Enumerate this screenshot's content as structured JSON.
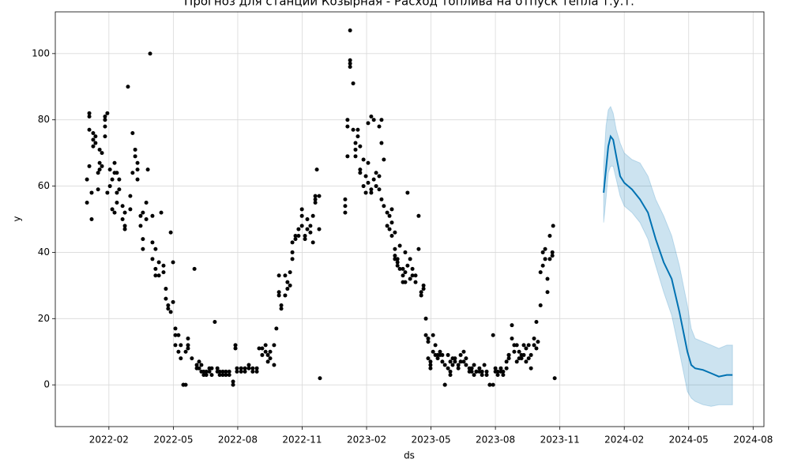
{
  "chart_data": {
    "type": "forecast",
    "title": "Прогноз для станции Козырная - Расход топлива на отпуск тепла т.у.т.",
    "xlabel": "ds",
    "ylabel": "y",
    "grid": true,
    "xlim": [
      2021.875,
      2024.625
    ],
    "ylim": [
      -12.6,
      112.6
    ],
    "yticks": [
      0,
      20,
      40,
      60,
      80,
      100
    ],
    "xticks": [
      {
        "value": 2022.083,
        "label": "2022-02"
      },
      {
        "value": 2022.333,
        "label": "2022-05"
      },
      {
        "value": 2022.583,
        "label": "2022-08"
      },
      {
        "value": 2022.833,
        "label": "2022-11"
      },
      {
        "value": 2023.083,
        "label": "2023-02"
      },
      {
        "value": 2023.333,
        "label": "2023-05"
      },
      {
        "value": 2023.583,
        "label": "2023-08"
      },
      {
        "value": 2023.833,
        "label": "2023-11"
      },
      {
        "value": 2024.083,
        "label": "2024-02"
      },
      {
        "value": 2024.333,
        "label": "2024-05"
      },
      {
        "value": 2024.583,
        "label": "2024-08"
      }
    ],
    "series": [
      {
        "type": "scatter",
        "color": "#000000",
        "x": [
          2021.998,
          2021.998,
          2022.007,
          2022.007,
          2022.007,
          2022.007,
          2022.016,
          2022.016,
          2022.022,
          2022.022,
          2022.022,
          2022.031,
          2022.031,
          2022.041,
          2022.041,
          2022.047,
          2022.047,
          2022.047,
          2022.056,
          2022.056,
          2022.068,
          2022.068,
          2022.068,
          2022.068,
          2022.077,
          2022.077,
          2022.087,
          2022.087,
          2022.096,
          2022.096,
          2022.105,
          2022.105,
          2022.105,
          2022.114,
          2022.114,
          2022.114,
          2022.123,
          2022.123,
          2022.136,
          2022.136,
          2022.145,
          2022.145,
          2022.145,
          2022.157,
          2022.166,
          2022.166,
          2022.175,
          2022.175,
          2022.185,
          2022.185,
          2022.194,
          2022.194,
          2022.194,
          2022.206,
          2022.206,
          2022.215,
          2022.215,
          2022.215,
          2022.228,
          2022.228,
          2022.234,
          2022.243,
          2022.252,
          2022.252,
          2022.252,
          2022.264,
          2022.264,
          2022.264,
          2022.277,
          2022.277,
          2022.286,
          2022.295,
          2022.295,
          2022.304,
          2022.304,
          2022.313,
          2022.313,
          2022.323,
          2022.323,
          2022.332,
          2022.332,
          2022.341,
          2022.341,
          2022.341,
          2022.353,
          2022.353,
          2022.362,
          2022.362,
          2022.372,
          2022.372,
          2022.381,
          2022.381,
          2022.39,
          2022.39,
          2022.39,
          2022.405,
          2022.415,
          2022.424,
          2022.424,
          2022.433,
          2022.433,
          2022.442,
          2022.442,
          2022.451,
          2022.451,
          2022.461,
          2022.461,
          2022.473,
          2022.473,
          2022.482,
          2022.482,
          2022.494,
          2022.504,
          2022.504,
          2022.513,
          2022.513,
          2022.525,
          2022.525,
          2022.537,
          2022.537,
          2022.55,
          2022.55,
          2022.565,
          2022.565,
          2022.574,
          2022.574,
          2022.58,
          2022.58,
          2022.596,
          2022.596,
          2022.611,
          2022.611,
          2022.626,
          2022.626,
          2022.641,
          2022.641,
          2022.657,
          2022.657,
          2022.666,
          2022.678,
          2022.678,
          2022.691,
          2022.691,
          2022.7,
          2022.7,
          2022.709,
          2022.709,
          2022.724,
          2022.724,
          2022.733,
          2022.743,
          2022.743,
          2022.743,
          2022.752,
          2022.752,
          2022.767,
          2022.767,
          2022.776,
          2022.776,
          2022.786,
          2022.786,
          2022.795,
          2022.795,
          2022.795,
          2022.807,
          2022.807,
          2022.819,
          2022.819,
          2022.832,
          2022.832,
          2022.832,
          2022.844,
          2022.844,
          2022.853,
          2022.853,
          2022.865,
          2022.865,
          2022.875,
          2022.875,
          2022.884,
          2022.884,
          2022.884,
          2022.89,
          2022.899,
          2022.899,
          2022.902,
          2023.0,
          2023.0,
          2023.0,
          2023.009,
          2023.009,
          2023.009,
          2023.019,
          2023.019,
          2023.019,
          2023.019,
          2023.031,
          2023.031,
          2023.04,
          2023.04,
          2023.04,
          2023.049,
          2023.049,
          2023.058,
          2023.058,
          2023.058,
          2023.071,
          2023.071,
          2023.08,
          2023.08,
          2023.089,
          2023.089,
          2023.089,
          2023.101,
          2023.101,
          2023.101,
          2023.111,
          2023.111,
          2023.12,
          2023.12,
          2023.132,
          2023.132,
          2023.132,
          2023.141,
          2023.141,
          2023.141,
          2023.15,
          2023.15,
          2023.163,
          2023.163,
          2023.172,
          2023.172,
          2023.181,
          2023.181,
          2023.181,
          2023.193,
          2023.193,
          2023.193,
          2023.193,
          2023.203,
          2023.203,
          2023.203,
          2023.212,
          2023.212,
          2023.224,
          2023.224,
          2023.224,
          2023.233,
          2023.233,
          2023.233,
          2023.242,
          2023.242,
          2023.252,
          2023.252,
          2023.261,
          2023.261,
          2023.273,
          2023.273,
          2023.285,
          2023.285,
          2023.295,
          2023.295,
          2023.304,
          2023.304,
          2023.313,
          2023.313,
          2023.322,
          2023.322,
          2023.322,
          2023.331,
          2023.331,
          2023.331,
          2023.341,
          2023.341,
          2023.35,
          2023.35,
          2023.359,
          2023.359,
          2023.368,
          2023.368,
          2023.377,
          2023.377,
          2023.387,
          2023.387,
          2023.387,
          2023.399,
          2023.399,
          2023.408,
          2023.408,
          2023.408,
          2023.417,
          2023.417,
          2023.426,
          2023.426,
          2023.439,
          2023.439,
          2023.448,
          2023.448,
          2023.46,
          2023.46,
          2023.469,
          2023.469,
          2023.482,
          2023.482,
          2023.491,
          2023.491,
          2023.5,
          2023.5,
          2023.509,
          2023.509,
          2023.521,
          2023.521,
          2023.531,
          2023.531,
          2023.54,
          2023.549,
          2023.549,
          2023.561,
          2023.561,
          2023.574,
          2023.574,
          2023.583,
          2023.583,
          2023.592,
          2023.592,
          2023.604,
          2023.604,
          2023.613,
          2023.613,
          2023.626,
          2023.626,
          2023.635,
          2023.635,
          2023.635,
          2023.647,
          2023.647,
          2023.656,
          2023.656,
          2023.666,
          2023.666,
          2023.675,
          2023.675,
          2023.684,
          2023.684,
          2023.693,
          2023.693,
          2023.702,
          2023.702,
          2023.712,
          2023.712,
          2023.721,
          2023.721,
          2023.733,
          2023.733,
          2023.742,
          2023.742,
          2023.748,
          2023.758,
          2023.758,
          2023.767,
          2023.767,
          2023.776,
          2023.776,
          2023.785,
          2023.785,
          2023.794,
          2023.794,
          2023.804,
          2023.804,
          2023.807,
          2023.813
        ],
        "values": [
          62,
          55,
          66,
          77,
          82,
          81,
          58,
          50,
          76,
          74,
          72,
          75,
          73,
          59,
          64,
          67,
          65,
          71,
          70,
          66,
          80,
          81,
          78,
          75,
          82,
          58,
          60,
          65,
          53,
          62,
          64,
          52,
          67,
          58,
          64,
          55,
          62,
          59,
          50,
          54,
          47,
          48,
          52,
          90,
          57,
          53,
          76,
          64,
          71,
          69,
          67,
          62,
          65,
          48,
          51,
          52,
          44,
          41,
          55,
          50,
          65,
          100,
          38,
          51,
          43,
          33,
          35,
          41,
          33,
          37,
          52,
          36,
          34,
          26,
          29,
          24,
          23,
          46,
          22,
          25,
          37,
          15,
          12,
          17,
          15,
          10,
          12,
          8,
          0,
          0,
          0,
          10,
          14,
          11,
          12,
          8,
          35,
          6,
          5,
          7,
          5,
          6,
          4,
          4,
          3,
          3,
          4,
          5,
          4,
          5,
          3,
          19,
          5,
          4,
          4,
          3,
          3,
          4,
          4,
          3,
          4,
          3,
          1,
          0,
          12,
          11,
          4,
          5,
          4,
          5,
          4,
          5,
          6,
          5,
          4,
          5,
          4,
          5,
          11,
          9,
          11,
          12,
          10,
          7,
          9,
          10,
          8,
          6,
          12,
          17,
          28,
          27,
          33,
          24,
          23,
          33,
          27,
          31,
          29,
          30,
          34,
          38,
          40,
          43,
          45,
          44,
          45,
          47,
          51,
          53,
          48,
          45,
          44,
          50,
          47,
          48,
          46,
          51,
          43,
          56,
          57,
          55,
          65,
          47,
          57,
          2,
          56,
          52,
          54,
          69,
          80,
          78,
          98,
          97,
          96,
          107,
          91,
          77,
          73,
          71,
          69,
          77,
          75,
          72,
          65,
          64,
          60,
          68,
          58,
          63,
          79,
          61,
          67,
          81,
          59,
          58,
          80,
          62,
          64,
          60,
          63,
          78,
          59,
          80,
          73,
          56,
          68,
          54,
          48,
          52,
          51,
          47,
          53,
          49,
          45,
          41,
          46,
          38,
          39,
          36,
          37,
          38,
          42,
          35,
          33,
          35,
          31,
          40,
          34,
          31,
          58,
          36,
          32,
          38,
          33,
          35,
          31,
          33,
          51,
          41,
          28,
          27,
          29,
          30,
          20,
          15,
          13,
          14,
          8,
          5,
          7,
          6,
          15,
          10,
          12,
          9,
          8,
          9,
          9,
          10,
          9,
          7,
          0,
          0,
          6,
          9,
          5,
          4,
          3,
          7,
          6,
          8,
          7,
          8,
          5,
          6,
          9,
          7,
          10,
          7,
          6,
          8,
          4,
          5,
          4,
          5,
          6,
          3,
          4,
          4,
          5,
          4,
          3,
          4,
          6,
          4,
          3,
          0,
          0,
          15,
          0,
          4,
          5,
          3,
          4,
          5,
          4,
          4,
          3,
          5,
          7,
          8,
          9,
          9,
          18,
          14,
          12,
          10,
          12,
          7,
          8,
          10,
          9,
          8,
          12,
          9,
          11,
          7,
          8,
          12,
          5,
          9,
          12,
          14,
          19,
          11,
          13,
          24,
          34,
          36,
          40,
          38,
          41,
          32,
          28,
          45,
          38,
          40,
          39,
          48,
          2
        ]
      },
      {
        "type": "line",
        "color": "#0072B2",
        "x": [
          2024.003,
          2024.012,
          2024.021,
          2024.03,
          2024.04,
          2024.052,
          2024.067,
          2024.083,
          2024.113,
          2024.144,
          2024.175,
          2024.205,
          2024.236,
          2024.267,
          2024.297,
          2024.328,
          2024.343,
          2024.358,
          2024.389,
          2024.42,
          2024.45,
          2024.481,
          2024.503
        ],
        "values": [
          58,
          65,
          72,
          75,
          74,
          69,
          63,
          61,
          59,
          56,
          52,
          44,
          37,
          32,
          22,
          10,
          6,
          5,
          4.5,
          3.5,
          2.5,
          3,
          3
        ],
        "upper": [
          66,
          78,
          83,
          84,
          82,
          77,
          73,
          70,
          68,
          67,
          63,
          56,
          51,
          45,
          36,
          24,
          17,
          14,
          13,
          12,
          11,
          12,
          12
        ],
        "lower": [
          49,
          56,
          64,
          66,
          66,
          62,
          57,
          54,
          52,
          49,
          44,
          36,
          28,
          21,
          10,
          -2,
          -4,
          -5,
          -6,
          -6.5,
          -6,
          -6,
          -6
        ]
      }
    ]
  }
}
